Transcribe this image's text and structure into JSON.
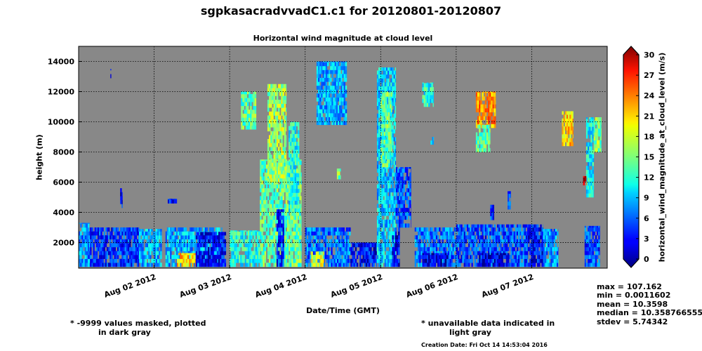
{
  "header": {
    "title": "sgpkasacradvvadC1.c1 for 20120801-20120807",
    "subtitle": "Horizontal wind magnitude at cloud level"
  },
  "chart_data": {
    "type": "heatmap",
    "title": "Horizontal wind magnitude at cloud level",
    "xlabel": "Date/Time (GMT)",
    "ylabel": "height (m)",
    "xlim": [
      "2012-08-01",
      "2012-08-08"
    ],
    "ylim": [
      300,
      15000
    ],
    "xticks": [
      "Aug 02 2012",
      "Aug 03 2012",
      "Aug 04 2012",
      "Aug 05 2012",
      "Aug 06 2012",
      "Aug 07 2012"
    ],
    "yticks": [
      2000,
      4000,
      6000,
      8000,
      10000,
      12000,
      14000
    ],
    "grid": true,
    "colorbar": {
      "label": "horizontal_wind_magnitude_at_cloud_level (m/s)",
      "min": 0,
      "max": 30,
      "ticks": [
        0,
        3,
        6,
        9,
        12,
        15,
        18,
        21,
        24,
        27,
        30
      ],
      "colormap": "jet"
    },
    "background_color": "#888888",
    "stats": {
      "max": "max = 107.162",
      "min": "min = 0.0011602",
      "mean": "mean = 10.3598",
      "median": "median = 10.3587665557861",
      "stdev": "stdev = 5.74342"
    },
    "regions": [
      {
        "t0": 0.0,
        "t1": 0.15,
        "h0": 400,
        "h1": 3300,
        "v": 8
      },
      {
        "t0": 0.15,
        "t1": 0.8,
        "h0": 400,
        "h1": 3000,
        "v": 5
      },
      {
        "t0": 0.8,
        "t1": 1.1,
        "h0": 400,
        "h1": 2900,
        "v": 9
      },
      {
        "t0": 0.55,
        "t1": 0.58,
        "h0": 4300,
        "h1": 5600,
        "v": 4
      },
      {
        "t0": 0.42,
        "t1": 0.43,
        "h0": 12900,
        "h1": 13500,
        "v": 6
      },
      {
        "t0": 1.15,
        "t1": 1.9,
        "h0": 400,
        "h1": 3000,
        "v": 9
      },
      {
        "t0": 1.3,
        "t1": 1.55,
        "h0": 400,
        "h1": 1300,
        "v": 20
      },
      {
        "t0": 1.55,
        "t1": 1.95,
        "h0": 400,
        "h1": 2700,
        "v": 4
      },
      {
        "t0": 1.18,
        "t1": 1.3,
        "h0": 4600,
        "h1": 4900,
        "v": 4
      },
      {
        "t0": 2.0,
        "t1": 2.4,
        "h0": 400,
        "h1": 2800,
        "v": 12
      },
      {
        "t0": 2.15,
        "t1": 2.35,
        "h0": 9500,
        "h1": 12000,
        "v": 14
      },
      {
        "t0": 2.4,
        "t1": 2.95,
        "h0": 400,
        "h1": 7500,
        "v": 14
      },
      {
        "t0": 2.5,
        "t1": 2.75,
        "h0": 6000,
        "h1": 12500,
        "v": 16
      },
      {
        "t0": 2.62,
        "t1": 2.72,
        "h0": 400,
        "h1": 4200,
        "v": 5
      },
      {
        "t0": 2.78,
        "t1": 2.92,
        "h0": 4000,
        "h1": 10000,
        "v": 12
      },
      {
        "t0": 3.0,
        "t1": 3.6,
        "h0": 400,
        "h1": 3000,
        "v": 7
      },
      {
        "t0": 3.08,
        "t1": 3.25,
        "h0": 400,
        "h1": 1400,
        "v": 18
      },
      {
        "t0": 3.15,
        "t1": 3.55,
        "h0": 9800,
        "h1": 14000,
        "v": 9
      },
      {
        "t0": 3.42,
        "t1": 3.47,
        "h0": 6200,
        "h1": 6900,
        "v": 14
      },
      {
        "t0": 3.6,
        "t1": 3.95,
        "h0": 400,
        "h1": 2000,
        "v": 4
      },
      {
        "t0": 3.95,
        "t1": 4.2,
        "h0": 400,
        "h1": 13600,
        "v": 10
      },
      {
        "t0": 4.0,
        "t1": 4.15,
        "h0": 7000,
        "h1": 12000,
        "v": 14
      },
      {
        "t0": 4.2,
        "t1": 4.4,
        "h0": 3000,
        "h1": 7000,
        "v": 6
      },
      {
        "t0": 4.15,
        "t1": 4.25,
        "h0": 400,
        "h1": 3000,
        "v": 3
      },
      {
        "t0": 4.45,
        "t1": 5.0,
        "h0": 400,
        "h1": 3000,
        "v": 7
      },
      {
        "t0": 4.55,
        "t1": 4.9,
        "h0": 400,
        "h1": 1300,
        "v": 3
      },
      {
        "t0": 4.55,
        "t1": 4.7,
        "h0": 11000,
        "h1": 12600,
        "v": 12
      },
      {
        "t0": 4.66,
        "t1": 4.7,
        "h0": 8500,
        "h1": 9000,
        "v": 11
      },
      {
        "t0": 5.0,
        "t1": 5.95,
        "h0": 400,
        "h1": 3200,
        "v": 6
      },
      {
        "t0": 5.3,
        "t1": 5.7,
        "h0": 400,
        "h1": 1300,
        "v": 3
      },
      {
        "t0": 5.26,
        "t1": 5.52,
        "h0": 9600,
        "h1": 12000,
        "v": 22
      },
      {
        "t0": 5.26,
        "t1": 5.45,
        "h0": 8000,
        "h1": 9800,
        "v": 14
      },
      {
        "t0": 5.68,
        "t1": 5.72,
        "h0": 4200,
        "h1": 5400,
        "v": 6
      },
      {
        "t0": 5.45,
        "t1": 5.5,
        "h0": 3500,
        "h1": 4500,
        "v": 5
      },
      {
        "t0": 5.95,
        "t1": 6.15,
        "h0": 400,
        "h1": 3200,
        "v": 4
      },
      {
        "t0": 6.15,
        "t1": 6.35,
        "h0": 400,
        "h1": 2900,
        "v": 8
      },
      {
        "t0": 6.4,
        "t1": 6.55,
        "h0": 8400,
        "h1": 10700,
        "v": 20
      },
      {
        "t0": 6.7,
        "t1": 6.9,
        "h0": 400,
        "h1": 3100,
        "v": 6
      },
      {
        "t0": 6.72,
        "t1": 6.82,
        "h0": 5000,
        "h1": 10300,
        "v": 11
      },
      {
        "t0": 6.82,
        "t1": 6.92,
        "h0": 8000,
        "h1": 10300,
        "v": 15
      },
      {
        "t0": 6.68,
        "t1": 6.72,
        "h0": 5800,
        "h1": 6400,
        "v": 28
      }
    ]
  },
  "footer": {
    "note_masked_1": "* -9999 values masked, plotted",
    "note_masked_2": "in dark gray",
    "note_unavail_1": "* unavailable data indicated in",
    "note_unavail_2": "light gray",
    "creation": "Creation Date: Fri Oct 14 14:53:04 2016"
  }
}
